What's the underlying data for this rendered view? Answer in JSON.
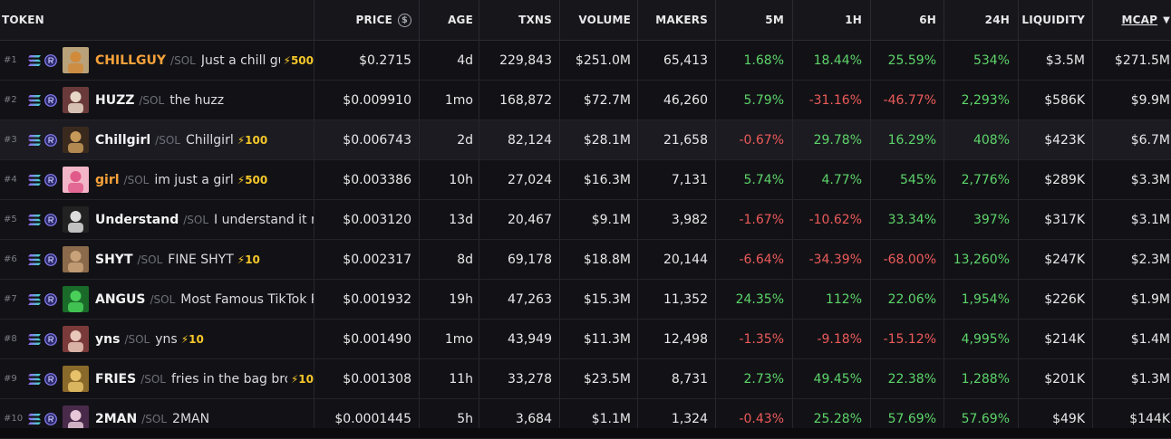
{
  "header": {
    "token": "TOKEN",
    "price": "PRICE",
    "age": "AGE",
    "txns": "TXNS",
    "volume": "VOLUME",
    "makers": "MAKERS",
    "m5": "5M",
    "h1": "1H",
    "h6": "6H",
    "h24": "24H",
    "liquidity": "LIQUIDITY",
    "mcap": "MCAP",
    "price_icon": "$"
  },
  "colors": {
    "positive": "#5dd46a",
    "negative": "#ec5a5a",
    "boost": "#f6c72a",
    "highlight_symbol": "#f7a23a"
  },
  "rows": [
    {
      "rank": "#1",
      "symbol": "CHILLGUY",
      "chain": "/SOL",
      "name": "Just a chill gu",
      "boost": "⚡500",
      "price": "$0.2715",
      "age": "4d",
      "txns": "229,843",
      "volume": "$251.0M",
      "makers": "65,413",
      "m5": "1.68%",
      "h1": "18.44%",
      "h6": "25.59%",
      "h24": "534%",
      "liquidity": "$3.5M",
      "mcap": "$271.5M",
      "signs": [
        "pos",
        "pos",
        "pos",
        "pos"
      ]
    },
    {
      "rank": "#2",
      "symbol": "HUZZ",
      "chain": "/SOL",
      "name": "the huzz",
      "boost": "",
      "price": "$0.009910",
      "age": "1mo",
      "txns": "168,872",
      "volume": "$72.7M",
      "makers": "46,260",
      "m5": "5.79%",
      "h1": "-31.16%",
      "h6": "-46.77%",
      "h24": "2,293%",
      "liquidity": "$586K",
      "mcap": "$9.9M",
      "signs": [
        "pos",
        "neg",
        "neg",
        "pos"
      ]
    },
    {
      "rank": "#3",
      "symbol": "Chillgirl",
      "chain": "/SOL",
      "name": "Chillgirl",
      "boost": "⚡100",
      "price": "$0.006743",
      "age": "2d",
      "txns": "82,124",
      "volume": "$28.1M",
      "makers": "21,658",
      "m5": "-0.67%",
      "h1": "29.78%",
      "h6": "16.29%",
      "h24": "408%",
      "liquidity": "$423K",
      "mcap": "$6.7M",
      "signs": [
        "neg",
        "pos",
        "pos",
        "pos"
      ]
    },
    {
      "rank": "#4",
      "symbol": "girl",
      "chain": "/SOL",
      "name": "im just a girl",
      "boost": "⚡500",
      "price": "$0.003386",
      "age": "10h",
      "txns": "27,024",
      "volume": "$16.3M",
      "makers": "7,131",
      "m5": "5.74%",
      "h1": "4.77%",
      "h6": "545%",
      "h24": "2,776%",
      "liquidity": "$289K",
      "mcap": "$3.3M",
      "signs": [
        "pos",
        "pos",
        "pos",
        "pos"
      ]
    },
    {
      "rank": "#5",
      "symbol": "Understand",
      "chain": "/SOL",
      "name": "I understand it n",
      "boost": "",
      "price": "$0.003120",
      "age": "13d",
      "txns": "20,467",
      "volume": "$9.1M",
      "makers": "3,982",
      "m5": "-1.67%",
      "h1": "-10.62%",
      "h6": "33.34%",
      "h24": "397%",
      "liquidity": "$317K",
      "mcap": "$3.1M",
      "signs": [
        "neg",
        "neg",
        "pos",
        "pos"
      ]
    },
    {
      "rank": "#6",
      "symbol": "SHYT",
      "chain": "/SOL",
      "name": "FINE SHYT",
      "boost": "⚡10",
      "price": "$0.002317",
      "age": "8d",
      "txns": "69,178",
      "volume": "$18.8M",
      "makers": "20,144",
      "m5": "-6.64%",
      "h1": "-34.39%",
      "h6": "-68.00%",
      "h24": "13,260%",
      "liquidity": "$247K",
      "mcap": "$2.3M",
      "signs": [
        "neg",
        "neg",
        "neg",
        "pos"
      ]
    },
    {
      "rank": "#7",
      "symbol": "ANGUS",
      "chain": "/SOL",
      "name": "Most Famous TikTok P",
      "boost": "",
      "price": "$0.001932",
      "age": "19h",
      "txns": "47,263",
      "volume": "$15.3M",
      "makers": "11,352",
      "m5": "24.35%",
      "h1": "112%",
      "h6": "22.06%",
      "h24": "1,954%",
      "liquidity": "$226K",
      "mcap": "$1.9M",
      "signs": [
        "pos",
        "pos",
        "pos",
        "pos"
      ]
    },
    {
      "rank": "#8",
      "symbol": "yns",
      "chain": "/SOL",
      "name": "yns",
      "boost": "⚡10",
      "price": "$0.001490",
      "age": "1mo",
      "txns": "43,949",
      "volume": "$11.3M",
      "makers": "12,498",
      "m5": "-1.35%",
      "h1": "-9.18%",
      "h6": "-15.12%",
      "h24": "4,995%",
      "liquidity": "$214K",
      "mcap": "$1.4M",
      "signs": [
        "neg",
        "neg",
        "neg",
        "pos"
      ]
    },
    {
      "rank": "#9",
      "symbol": "FRIES",
      "chain": "/SOL",
      "name": "fries in the bag bro",
      "boost": "⚡10",
      "price": "$0.001308",
      "age": "11h",
      "txns": "33,278",
      "volume": "$23.5M",
      "makers": "8,731",
      "m5": "2.73%",
      "h1": "49.45%",
      "h6": "22.38%",
      "h24": "1,288%",
      "liquidity": "$201K",
      "mcap": "$1.3M",
      "signs": [
        "pos",
        "pos",
        "pos",
        "pos"
      ]
    },
    {
      "rank": "#10",
      "symbol": "2MAN",
      "chain": "/SOL",
      "name": "2MAN",
      "boost": "",
      "price": "$0.0001445",
      "age": "5h",
      "txns": "3,684",
      "volume": "$1.1M",
      "makers": "1,324",
      "m5": "-0.43%",
      "h1": "25.28%",
      "h6": "57.69%",
      "h24": "57.69%",
      "liquidity": "$49K",
      "mcap": "$144K",
      "signs": [
        "neg",
        "pos",
        "pos",
        "pos"
      ]
    }
  ]
}
